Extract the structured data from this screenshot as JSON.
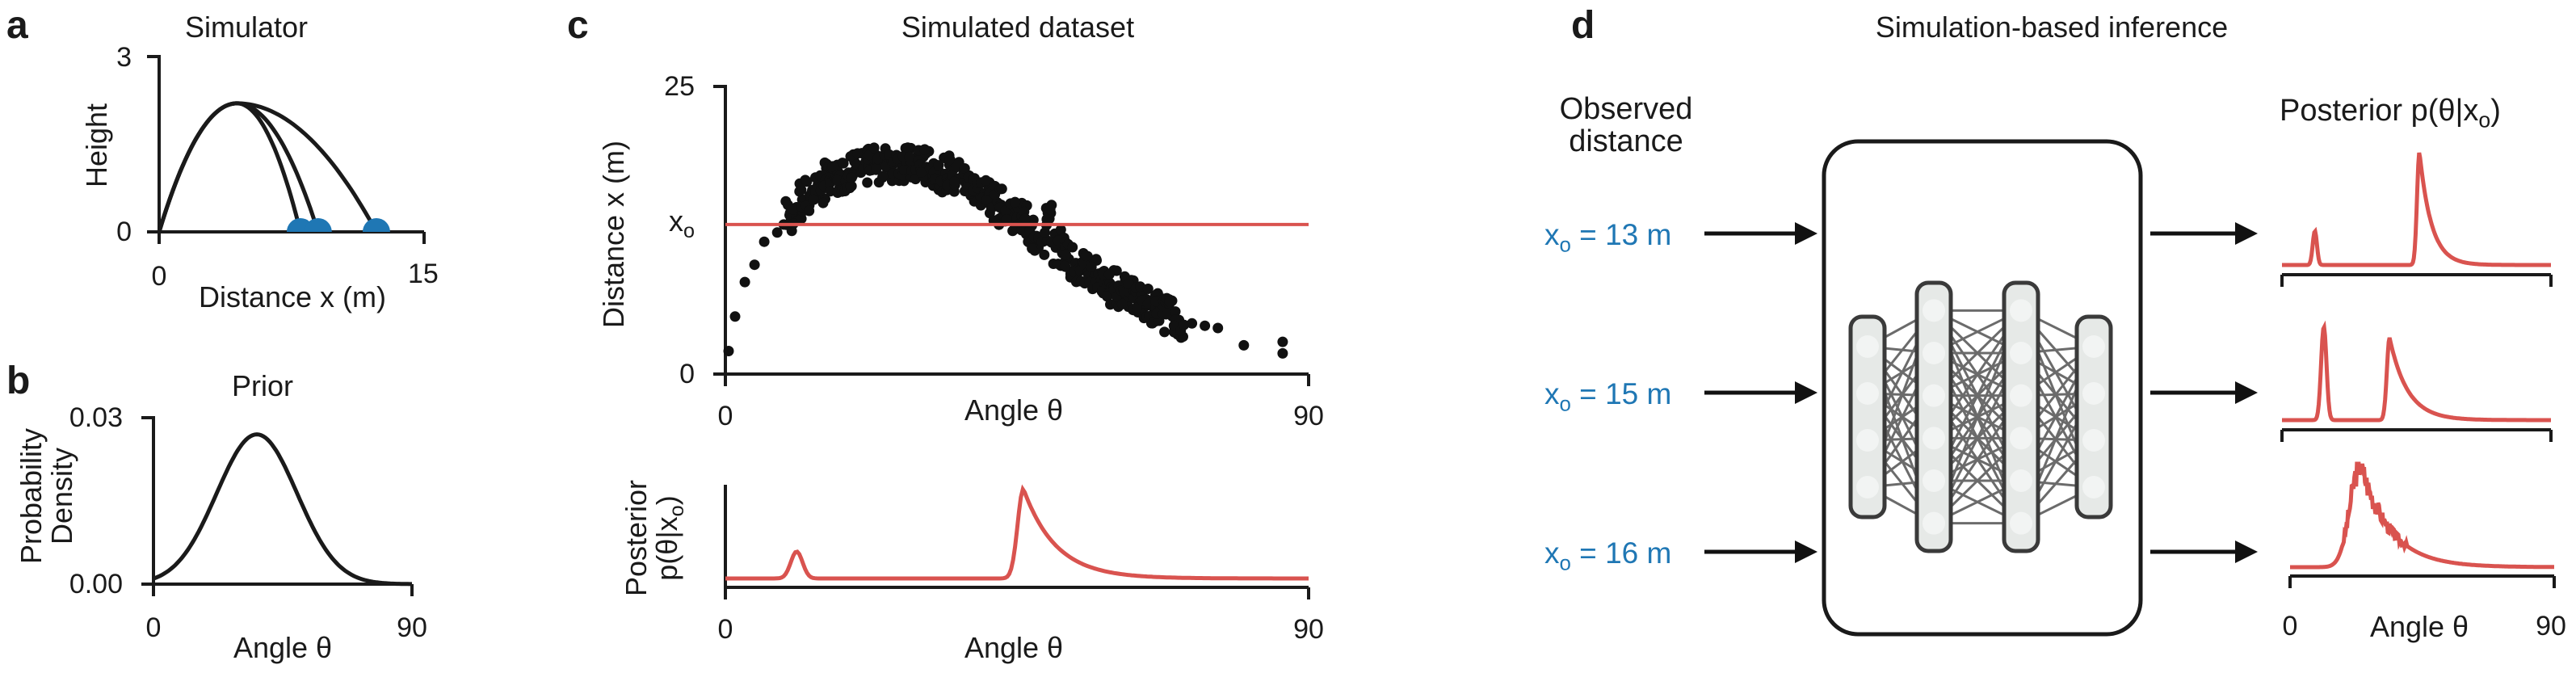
{
  "panel_a": {
    "letter": "a",
    "title": "Simulator",
    "xlabel": "Distance x (m)",
    "ylabel": "Height",
    "xticks": [
      "0",
      "15"
    ],
    "yticks": [
      "3",
      "0"
    ],
    "landing_x": [
      8,
      9,
      12.3
    ],
    "apex_height": 2.2,
    "apex_x": 4.4
  },
  "panel_b": {
    "letter": "b",
    "title": "Prior",
    "xlabel": "Angle θ",
    "ylabel_line1": "Probability",
    "ylabel_line2": "Density",
    "xticks": [
      "0",
      "90"
    ],
    "yticks": [
      "0.03",
      "0.00"
    ],
    "mean": 36,
    "sd": 14,
    "peak": 0.027
  },
  "panel_c": {
    "letter": "c",
    "title": "Simulated dataset",
    "xlabel": "Angle θ",
    "ylabel": "Distance x (m)",
    "xticks": [
      "0",
      "90"
    ],
    "yticks": [
      "25",
      "0"
    ],
    "x_observed_label": "x",
    "x_observed_sub": "o",
    "x_observed_value": 13,
    "posterior_xlabel": "Angle θ",
    "posterior_ylabel_line1": "Posterior",
    "posterior_ylabel_line2": "p(θ|x",
    "posterior_ylabel_sub": "o",
    "posterior_ylabel_end": ")",
    "posterior_xticks": [
      "0",
      "90"
    ]
  },
  "panel_d": {
    "letter": "d",
    "title": "Simulation-based inference",
    "observed_line1": "Observed",
    "observed_line2": "distance",
    "posterior_label": "Posterior  p(θ|x",
    "posterior_label_sub": "o",
    "posterior_label_end": ")",
    "observations": [
      {
        "prefix": "x",
        "sub": "o",
        "text": " = 13 m"
      },
      {
        "prefix": "x",
        "sub": "o",
        "text": " = 15 m"
      },
      {
        "prefix": "x",
        "sub": "o",
        "text": " = 16 m"
      }
    ],
    "xlabel": "Angle θ",
    "xticks": [
      "0",
      "90"
    ]
  },
  "colors": {
    "ink": "#1a1a1a",
    "posterior": "#d9534f",
    "observed": "#1f77b4",
    "network_fill": "#e6e9e7",
    "network_stroke": "#3a3a3a"
  },
  "chart_data": [
    {
      "type": "line",
      "title": "Simulator",
      "xlabel": "Distance x (m)",
      "ylabel": "Height",
      "xlim": [
        0,
        15
      ],
      "ylim": [
        0,
        3
      ],
      "series": [
        {
          "x": [
            0,
            4.4,
            8
          ],
          "y": [
            0,
            2.2,
            0
          ]
        },
        {
          "x": [
            0,
            4.4,
            9
          ],
          "y": [
            0,
            2.2,
            0
          ]
        },
        {
          "x": [
            0,
            4.4,
            12.3
          ],
          "y": [
            0,
            2.2,
            0
          ]
        }
      ]
    },
    {
      "type": "line",
      "title": "Prior",
      "xlabel": "Angle θ",
      "ylabel": "Probability Density",
      "xlim": [
        0,
        90
      ],
      "ylim": [
        0,
        0.03
      ]
    },
    {
      "type": "scatter",
      "title": "Simulated dataset",
      "xlabel": "Angle θ",
      "ylabel": "Distance x (m)",
      "xlim": [
        0,
        90
      ],
      "ylim": [
        0,
        25
      ],
      "observed_line": 13,
      "points_x": [
        0.5,
        1.5,
        3,
        4.5,
        6,
        8,
        9,
        10,
        11,
        12,
        13,
        14,
        15,
        16,
        17,
        18,
        19,
        20,
        21,
        22,
        23,
        24,
        25,
        26,
        27,
        28,
        29,
        30,
        31,
        32,
        33,
        34,
        35,
        36,
        37,
        38,
        39,
        40,
        41,
        42,
        43,
        44,
        45,
        46,
        47,
        48,
        49,
        50,
        51,
        52,
        53,
        54,
        55,
        56,
        57,
        58,
        59,
        60,
        61,
        62,
        63,
        64,
        65,
        66,
        67,
        68,
        69,
        70,
        72,
        74,
        76,
        80,
        86,
        86
      ],
      "points_y": [
        2,
        5,
        8,
        9.5,
        11.5,
        12.3,
        13,
        13.8,
        14.5,
        15,
        15.5,
        16,
        16.4,
        16.8,
        17,
        17.3,
        17.5,
        17.7,
        17.9,
        18,
        18.1,
        18.2,
        18.3,
        18.3,
        18.3,
        18.2,
        18.2,
        18.1,
        18,
        17.8,
        17.6,
        17.4,
        17.2,
        17,
        16.7,
        16.4,
        16,
        15.7,
        15.3,
        14.9,
        14.5,
        14,
        13.6,
        13.1,
        12.6,
        12,
        11.5,
        13.5,
        11,
        10.5,
        10,
        9.6,
        9.3,
        8.9,
        8.5,
        8.2,
        7.8,
        7.6,
        7.3,
        7,
        6.6,
        6.3,
        6,
        5.8,
        5.5,
        5.2,
        5,
        4.7,
        4.4,
        4.2,
        4,
        2.5,
        2.8,
        1.8
      ]
    },
    {
      "type": "line",
      "title": "",
      "xlabel": "Angle θ",
      "ylabel": "Posterior p(θ|xo)",
      "xlim": [
        0,
        90
      ],
      "peaks": [
        {
          "x": 11,
          "height": 0.3
        },
        {
          "x": 46,
          "height": 1.0
        }
      ]
    }
  ]
}
